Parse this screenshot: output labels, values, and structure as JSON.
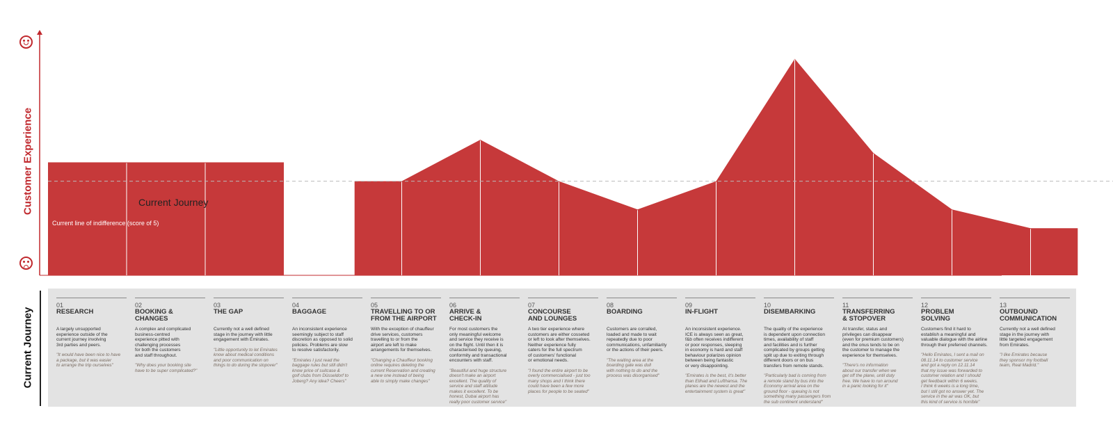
{
  "y_axis_label": "Customer Experience",
  "bottom_label": "Current Journey",
  "icons": {
    "top": "happy-face-icon",
    "bottom": "sad-face-icon"
  },
  "colors": {
    "accent": "#c0282d",
    "fill": "#c6393a",
    "panel": "#e3e3e3",
    "indifference_line": "#bbbbbb"
  },
  "chart_data": {
    "type": "area",
    "series": [
      {
        "name": "Current Journey",
        "segments": [
          [
            [
              0,
              6
            ],
            [
              1,
              6
            ],
            [
              2,
              6
            ],
            [
              3,
              6
            ]
          ],
          [
            [
              3.9,
              5
            ],
            [
              4.5,
              5
            ],
            [
              5.5,
              7.2
            ],
            [
              6.5,
              5
            ],
            [
              7.5,
              3.5
            ],
            [
              8.5,
              5
            ],
            [
              9.5,
              11.5
            ],
            [
              10.5,
              6.5
            ],
            [
              11.5,
              3.5
            ],
            [
              12.5,
              2.5
            ],
            [
              13.1,
              2.5
            ]
          ]
        ]
      }
    ],
    "indifference_line": {
      "value": 5,
      "label": "Current line of indifference (score of 5)"
    }
  },
  "stages": [
    {
      "num": "01",
      "title": "RESEARCH",
      "desc": "A largely unsupported\nexperience outside of the\ncurrent journey involving\n3rd parties and peers.",
      "quote": "\"It would have been nice to have\na package, but it was easier\nto arrange the trip ourselves\""
    },
    {
      "num": "02",
      "title": "BOOKING &\nCHANGES",
      "desc": "A complex and complicated\nbusiness-centred\nexperience pitted with\nchallenging processes\nfor both the customers\nand staff throughout.",
      "quote": "\"Why does your booking site\nhave to be super complicated?\""
    },
    {
      "num": "03",
      "title": "THE GAP",
      "desc": "Currently not a well defined\nstage in the journey with little\nengagement with Emirates.",
      "quote": "\"Little opportunity to let Emirates\nknow about medical conditions\nand poor communication on\nthings to do during the stopover\""
    },
    {
      "num": "04",
      "title": "BAGGAGE",
      "desc": "An inconsistent experience\nseemingly subject to staff\ndiscretion as opposed to solid\npolicies. Problems are slow\nto resolve satisfactorily.",
      "quote": "\"Emirates I just read the\nbaggage rules but still didn't\nknow price of suitcase &\ngolf clubs from Düsseldorf to\nJoberg? Any idea? Cheers\""
    },
    {
      "num": "05",
      "title": "TRAVELLING TO OR\nFROM THE AIRPORT",
      "desc": "With the exception of chauffeur\ndrive services, customers\ntravelling to or from the\nairport are left to make\narrangements for themselves.",
      "quote": "\"Changing a Chauffeur booking\nonline requires deleting the\ncurrent Reservation and creating\na new one instead of being\nable to simply make changes\""
    },
    {
      "num": "06",
      "title": "ARRIVE &\nCHECK-IN",
      "desc": "For most customers the\nonly meaningful welcome\nand service they receive is\non the flight. Until then it is\ncharacterised by queuing,\nconformity and transactional\nencounters with staff.",
      "quote": "\"Beautiful and huge structure\ndoesn't make an airport\nexcellent. The quality of\nservice and staff attitude\nmakes it excellent. To be\nhonest, Dubai airport has\nreally poor customer service\""
    },
    {
      "num": "07",
      "title": "CONCOURSE\nAND LOUNGES",
      "desc": "A two tier experience where\ncustomers are either cosseted\nor left to look after themselves.\nNeither experience fully\ncaters for the full spectrum\nof customers' functional\nor emotional needs.",
      "quote": "\"I found the entire airport to be\noverly commercialised - just too\nmany shops and I think there\ncould have been a few more\nplaces for people to be seated\""
    },
    {
      "num": "08",
      "title": "BOARDING",
      "desc": "Customers are corralled,\nloaded and made to wait\nrepeatedly due to poor\ncommunications, unfamiliarity\nor the actions of their peers.",
      "quote": "\"The waiting area at the\nboarding gate was dull\nwith nothing to do and the\nprocess was disorganised\""
    },
    {
      "num": "09",
      "title": "IN-FLIGHT",
      "desc": "An inconsistent experience.\nICE is always seen as great,\nf&b often receives indifferent\nor poor responses, sleeping\nin economy is hard and staff\nbehaviour polarizes opinion\nbetween being fantastic\nor very disappointing.",
      "quote": "\"Emirates is the best, it's better\nthan Etihad and Lufthansa. The\nplanes are the newest and the\nentertainment system is great\""
    },
    {
      "num": "10",
      "title": "DISEMBARKING",
      "desc": "The quality of the experience\nis dependent upon connection\ntimes, availability of staff\nand facilities and is further\ncomplicated by groups getting\nsplit up due to exiting through\ndifferent doors or on bus\ntransfers from remote stands.",
      "quote": "\"Particularly bad is coming from\na remote stand by bus into the\nEconomy arrival area on the\nground floor - queuing is not\nsomething many passengers from\nthe sub continent understand\""
    },
    {
      "num": "11",
      "title": "TRANSFERRING\n& STOPOVER",
      "desc": "At transfer, status and\nprivileges can disappear\n(even for premium customers)\nand the onus tends to be on\nthe customer to manage the\nexperience for themselves.",
      "quote": "\"There's no information\nabout our transfer when we\nget off the plane, until duty\nfree. We have to run around\nin a panic looking for it\""
    },
    {
      "num": "12",
      "title": "PROBLEM\nSOLVING",
      "desc": "Customers find it hard to\nestablish a meaningful and\nvaluable dialogue with the airline\nthrough their preferred channels.",
      "quote": "\"Hello Emirates, I sent a mail on\n08.11.14 to customer service\nand got a reply on 12.11.14\nthat my issue was forwarded to\ncustomer relation and I should\nget feedback within 6 weeks.\nI think 6 weeks is a long time,\nbut I still got no answer yet. The\nservice in the air was OK, but\nthis kind of service is horrible\""
    },
    {
      "num": "13",
      "title": "OUTBOUND\nCOMMUNICATION",
      "desc": "Currently not a well defined\nstage in the journey with\nlittle targeted engagement\nfrom Emirates.",
      "quote": "\"I like Emirates because\nthey sponsor my football\nteam, Real Madrid.\""
    }
  ]
}
